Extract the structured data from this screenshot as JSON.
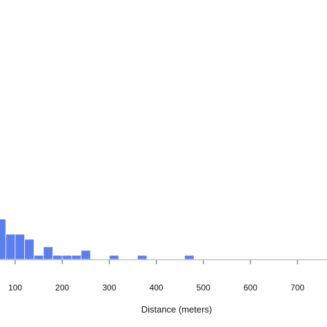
{
  "chart_data": {
    "type": "bar",
    "title": "",
    "xlabel": "Distance (meters)",
    "ylabel": "",
    "bin_width": 20,
    "bins": [
      {
        "start": 60,
        "end": 80,
        "count": 8
      },
      {
        "start": 80,
        "end": 100,
        "count": 5
      },
      {
        "start": 100,
        "end": 120,
        "count": 5
      },
      {
        "start": 120,
        "end": 140,
        "count": 4
      },
      {
        "start": 140,
        "end": 160,
        "count": 0.8
      },
      {
        "start": 160,
        "end": 180,
        "count": 2.5
      },
      {
        "start": 180,
        "end": 200,
        "count": 0.8
      },
      {
        "start": 200,
        "end": 220,
        "count": 0.8
      },
      {
        "start": 220,
        "end": 240,
        "count": 0.8
      },
      {
        "start": 240,
        "end": 260,
        "count": 1.8
      },
      {
        "start": 300,
        "end": 320,
        "count": 0.8
      },
      {
        "start": 360,
        "end": 380,
        "count": 0.8
      },
      {
        "start": 460,
        "end": 480,
        "count": 0.8
      }
    ],
    "x_ticks": [
      100,
      200,
      300,
      400,
      500,
      600,
      700
    ],
    "xlim": [
      60,
      750
    ],
    "grid": false,
    "colors": {
      "bar_fill": "#5b7ff0",
      "bar_stroke": "#ffffff",
      "axis": "#bbbbbb",
      "text": "#111111"
    }
  }
}
